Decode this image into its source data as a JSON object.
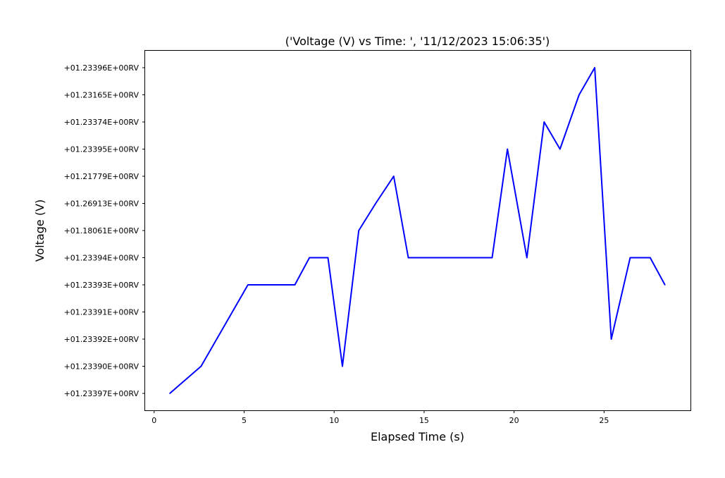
{
  "chart_data": {
    "type": "line",
    "title": "('Voltage (V) vs Time: ', '11/12/2023 15:06:35')",
    "xlabel": "Elapsed Time (s)",
    "ylabel": "Voltage (V)",
    "xlim": [
      -0.5,
      29.8
    ],
    "x_ticks": [
      0,
      5,
      10,
      15,
      20,
      25
    ],
    "y_categories": [
      "+01.23397E+00RV",
      "+01.23390E+00RV",
      "+01.23392E+00RV",
      "+01.23391E+00RV",
      "+01.23393E+00RV",
      "+01.23394E+00RV",
      "+01.18061E+00RV",
      "+01.26913E+00RV",
      "+01.21779E+00RV",
      "+01.23395E+00RV",
      "+01.23374E+00RV",
      "+01.23165E+00RV",
      "+01.23396E+00RV"
    ],
    "series": [
      {
        "color": "#0000ff",
        "x": [
          0.87,
          2.61,
          5.21,
          7.82,
          8.63,
          9.66,
          10.46,
          11.37,
          12.31,
          13.31,
          14.12,
          18.78,
          19.63,
          20.71,
          21.67,
          22.55,
          23.61,
          24.48,
          25.4,
          26.45,
          27.56,
          28.38
        ],
        "y": [
          "+01.23397E+00RV",
          "+01.23390E+00RV",
          "+01.23393E+00RV",
          "+01.23393E+00RV",
          "+01.23394E+00RV",
          "+01.23394E+00RV",
          "+01.23390E+00RV",
          "+01.18061E+00RV",
          "+01.26913E+00RV",
          "+01.21779E+00RV",
          "+01.23394E+00RV",
          "+01.23394E+00RV",
          "+01.23395E+00RV",
          "+01.23394E+00RV",
          "+01.23374E+00RV",
          "+01.23395E+00RV",
          "+01.23165E+00RV",
          "+01.23396E+00RV",
          "+01.23392E+00RV",
          "+01.23394E+00RV",
          "+01.23394E+00RV",
          "+01.23393E+00RV"
        ]
      }
    ],
    "grid": false,
    "legend": "none"
  }
}
